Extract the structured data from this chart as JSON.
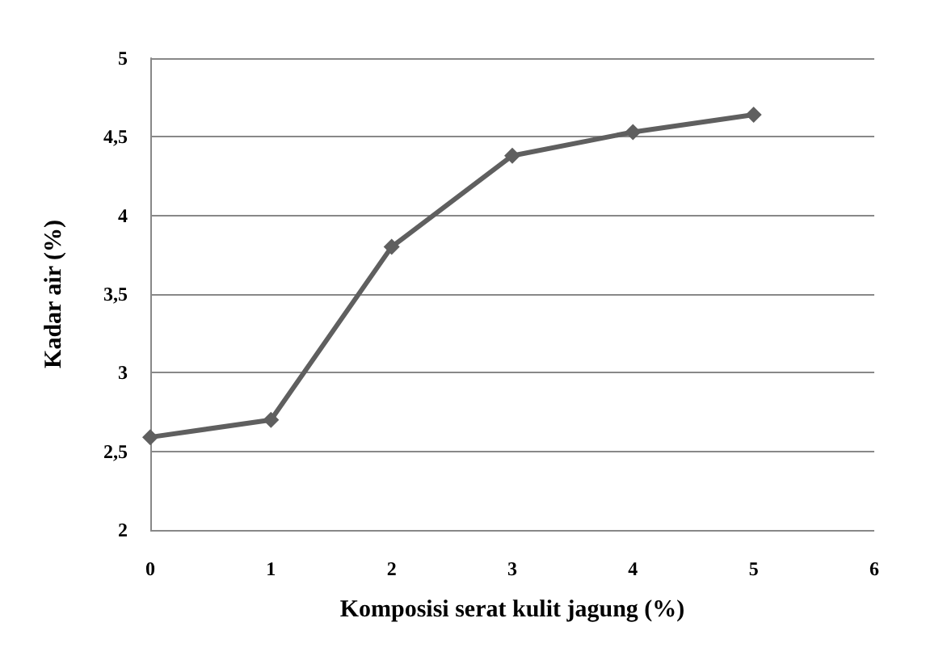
{
  "chart_data": {
    "type": "line",
    "xlabel": "Komposisi serat kulit jagung (%)",
    "ylabel": "Kadar air (%)",
    "x": [
      0,
      1,
      2,
      3,
      4,
      5
    ],
    "series": [
      {
        "color": "#5f5f5f",
        "values": [
          2.59,
          2.7,
          3.8,
          4.38,
          4.53,
          4.64
        ]
      }
    ],
    "xlim": [
      0,
      6
    ],
    "xticks": [
      0,
      1,
      2,
      3,
      4,
      5,
      6
    ],
    "ylim": [
      2,
      5
    ],
    "yticks": [
      2,
      {
        "value": 2.5,
        "label": "2,5"
      },
      3,
      {
        "value": 3.5,
        "label": "3,5"
      },
      4,
      {
        "value": 4.5,
        "label": "4,5"
      },
      5
    ],
    "grid": "y",
    "marker": "diamond",
    "line_style": "solid"
  }
}
